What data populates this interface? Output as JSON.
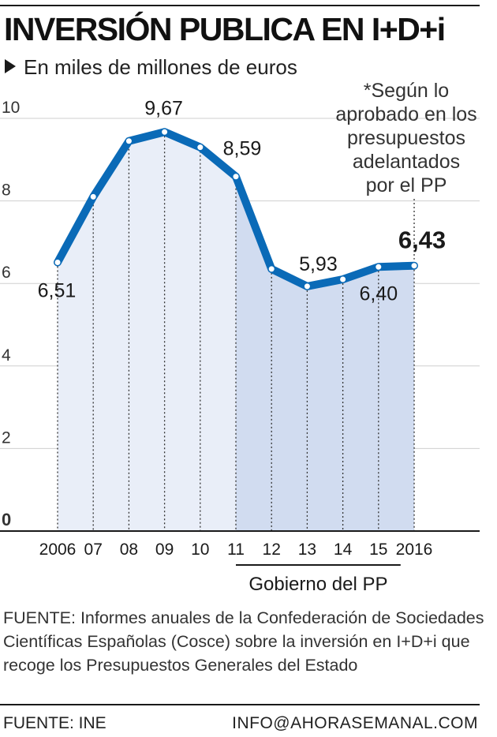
{
  "title": "INVERSIÓN PUBLICA EN I+D+i",
  "subtitle": "En miles de millones de euros",
  "note": "*Según lo\naprobado en los\npresupuestos\nadelantados\npor el PP",
  "source": "FUENTE: Informes anuales de la Confederación de Sociedades Científicas Españolas (Cosce) sobre la inversión en I+D+i que recoge los Presupuestos Generales del Estado",
  "footer": {
    "left": "FUENTE: INE",
    "right": "INFO@AHORASEMANAL.COM"
  },
  "chart_data": {
    "type": "area",
    "categories": [
      "2006",
      "07",
      "08",
      "09",
      "10",
      "11",
      "12",
      "13",
      "14",
      "15",
      "2016"
    ],
    "values": [
      6.51,
      8.1,
      9.45,
      9.67,
      9.3,
      8.59,
      6.35,
      5.93,
      6.1,
      6.4,
      6.43
    ],
    "data_labels": [
      {
        "index": 0,
        "text": "6,51"
      },
      {
        "index": 3,
        "text": "9,67"
      },
      {
        "index": 5,
        "text": "8,59"
      },
      {
        "index": 7,
        "text": "5,93"
      },
      {
        "index": 9,
        "text": "6,40"
      },
      {
        "index": 10,
        "text": "6,43",
        "bold": true
      }
    ],
    "y_ticks": [
      {
        "value": 0,
        "label": "0"
      },
      {
        "value": 2,
        "label": "2"
      },
      {
        "value": 4,
        "label": "4"
      },
      {
        "value": 6,
        "label": "6"
      },
      {
        "value": 8,
        "label": "8"
      },
      {
        "value": 10,
        "label": "10"
      }
    ],
    "ylim": [
      0,
      10
    ],
    "grid": true,
    "highlight": {
      "label": "Gobierno del PP",
      "from_index": 5,
      "to_index": 10
    },
    "colors": {
      "line": "#0a6ab7",
      "fill": "#e9eef8",
      "fill_highlight": "#d1dcf0",
      "grid": "#cfcfcf"
    }
  }
}
